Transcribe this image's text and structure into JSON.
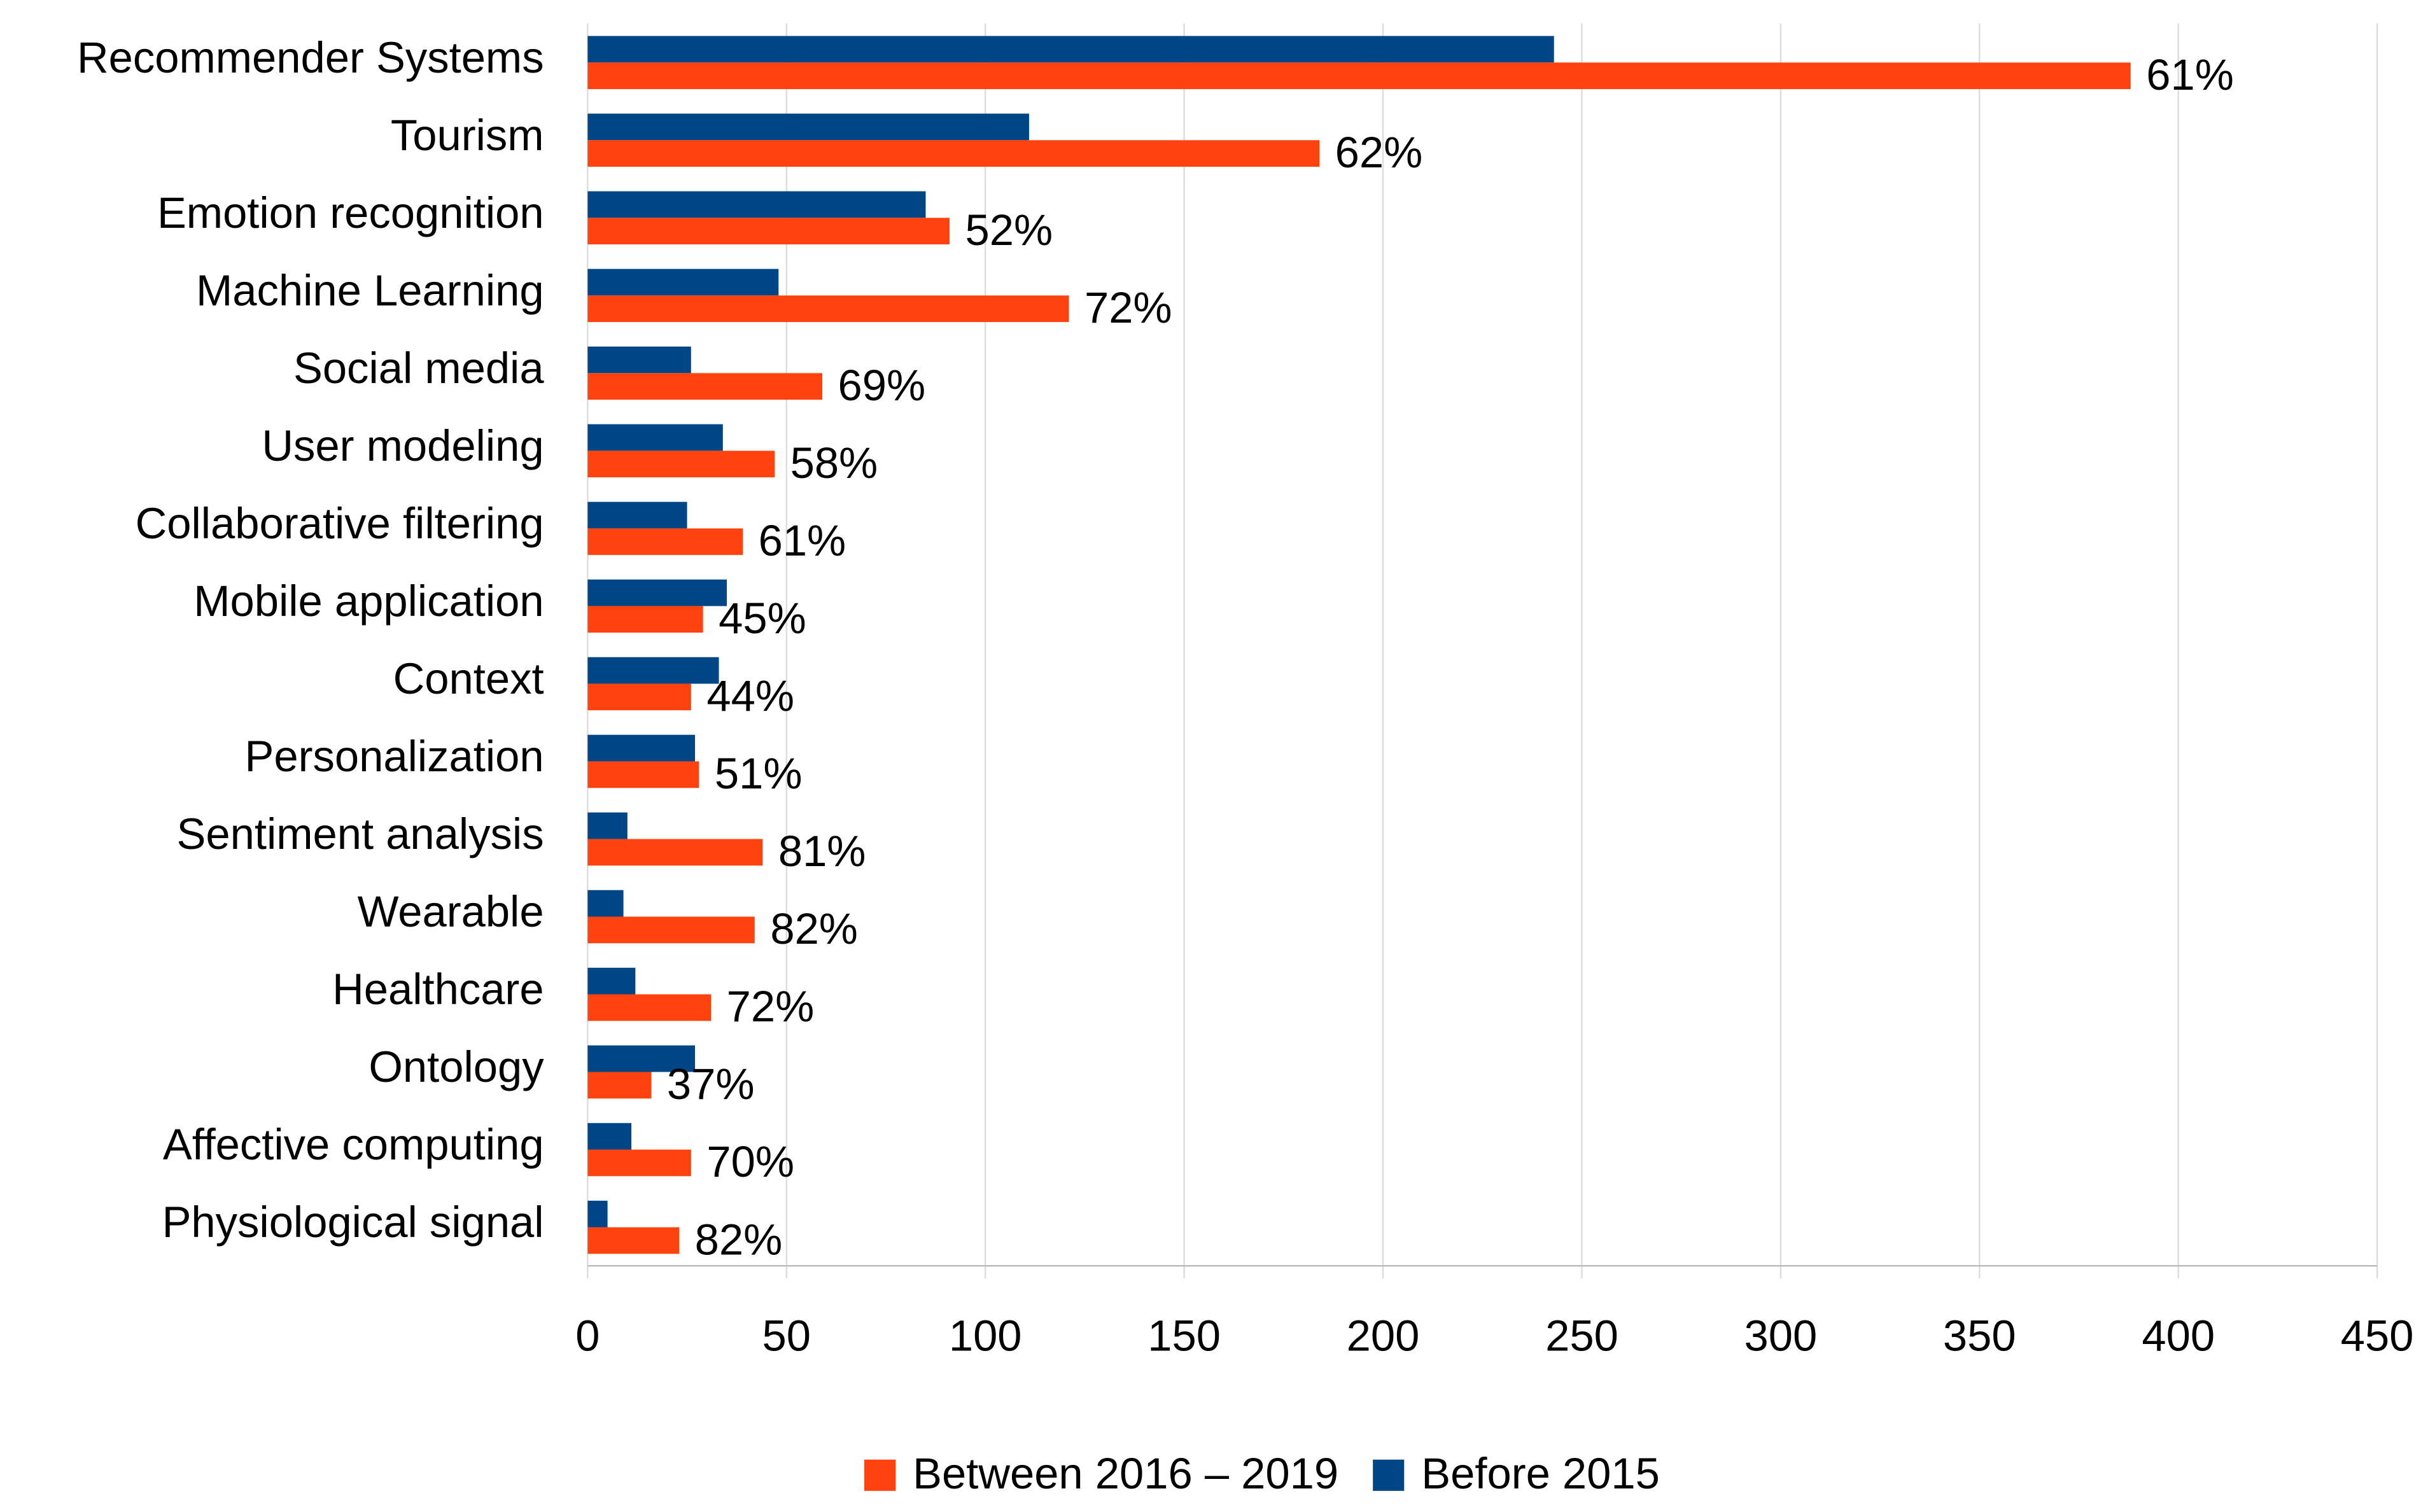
{
  "chart_data": {
    "type": "hbar",
    "categories": [
      "Recommender Systems",
      "Tourism",
      "Emotion recognition",
      "Machine Learning",
      "Social media",
      "User modeling",
      "Collaborative filtering",
      "Mobile application",
      "Context",
      "Personalization",
      "Sentiment analysis",
      "Wearable",
      "Healthcare",
      "Ontology",
      "Affective computing",
      "Physiological signal"
    ],
    "series": [
      {
        "name": "Between 2016 – 2019",
        "color": "#ff420e",
        "values": [
          388,
          184,
          91,
          121,
          59,
          47,
          39,
          29,
          26,
          28,
          44,
          42,
          31,
          16,
          26,
          23
        ]
      },
      {
        "name": "Before 2015",
        "color": "#004586",
        "values": [
          243,
          111,
          85,
          48,
          26,
          34,
          25,
          35,
          33,
          27,
          10,
          9,
          12,
          27,
          11,
          5
        ]
      }
    ],
    "share_labels": [
      "61%",
      "62%",
      "52%",
      "72%",
      "69%",
      "58%",
      "61%",
      "45%",
      "44%",
      "51%",
      "81%",
      "82%",
      "72%",
      "37%",
      "70%",
      "82%"
    ],
    "xlim": [
      0,
      450
    ],
    "xticks": [
      0,
      50,
      100,
      150,
      200,
      250,
      300,
      350,
      400,
      450
    ],
    "grid": true,
    "legend": "bottom"
  }
}
